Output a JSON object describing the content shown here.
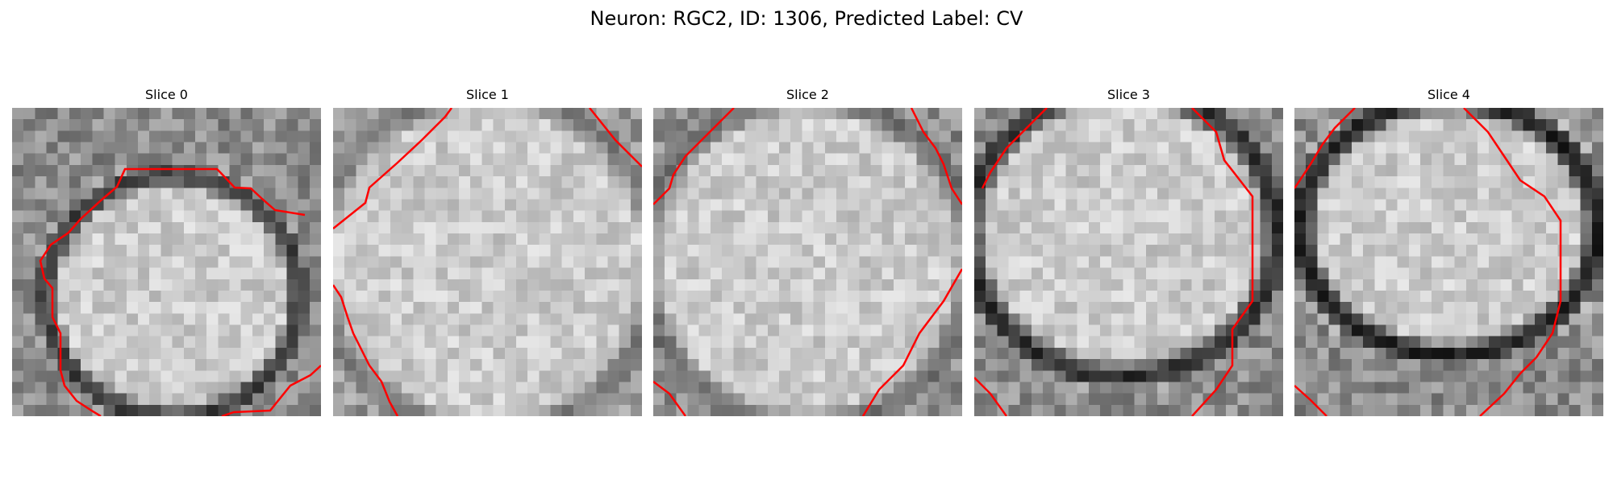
{
  "figure": {
    "title": "Neuron: RGC2, ID: 1306, Predicted Label: CV",
    "panels": [
      {
        "title": "Slice 0"
      },
      {
        "title": "Slice 1"
      },
      {
        "title": "Slice 2"
      },
      {
        "title": "Slice 3"
      },
      {
        "title": "Slice 4"
      }
    ],
    "contour_color": "#ff0000",
    "colormap": "gray"
  }
}
